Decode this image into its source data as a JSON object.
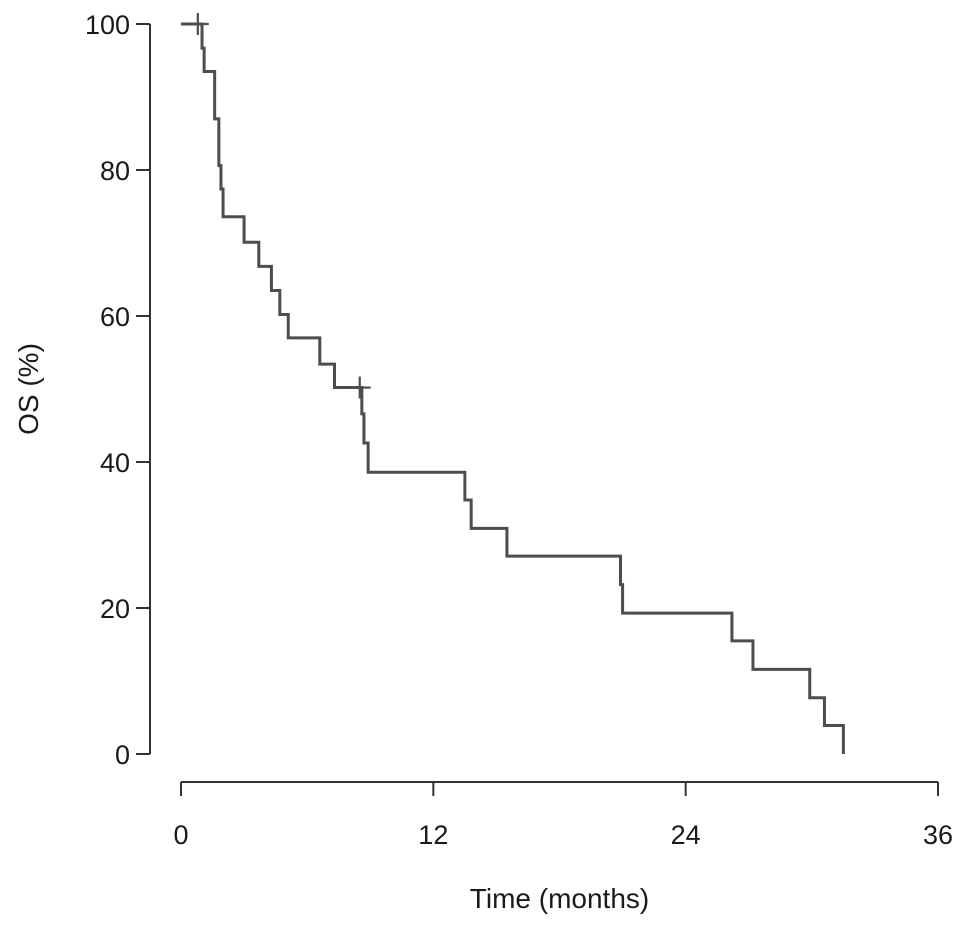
{
  "chart_data": {
    "type": "line",
    "subtype": "kaplan-meier-step",
    "xlabel": "Time (months)",
    "ylabel": "OS (%)",
    "xlim": [
      0,
      36
    ],
    "ylim": [
      0,
      100
    ],
    "xticks": [
      0,
      12,
      24,
      36
    ],
    "yticks": [
      0,
      20,
      40,
      60,
      80,
      100
    ],
    "grid": false,
    "line_color": "#4d4d4d",
    "series": [
      {
        "steps": [
          [
            0,
            100
          ],
          [
            1.0,
            96.7
          ],
          [
            1.1,
            93.5
          ],
          [
            1.6,
            87.0
          ],
          [
            1.8,
            80.6
          ],
          [
            1.9,
            77.4
          ],
          [
            2.0,
            73.6
          ],
          [
            3.0,
            70.1
          ],
          [
            3.7,
            66.8
          ],
          [
            4.3,
            63.5
          ],
          [
            4.7,
            60.2
          ],
          [
            5.1,
            57.0
          ],
          [
            6.6,
            53.4
          ],
          [
            7.3,
            50.2
          ],
          [
            8.6,
            46.6
          ],
          [
            8.7,
            42.6
          ],
          [
            8.9,
            38.6
          ],
          [
            13.5,
            34.8
          ],
          [
            13.8,
            30.9
          ],
          [
            15.5,
            27.1
          ],
          [
            20.9,
            23.2
          ],
          [
            21.0,
            19.3
          ],
          [
            26.2,
            15.5
          ],
          [
            27.2,
            11.6
          ],
          [
            29.9,
            7.7
          ],
          [
            30.6,
            3.9
          ],
          [
            31.5,
            0
          ]
        ],
        "censored": [
          [
            0.8,
            100
          ],
          [
            8.5,
            50.2
          ]
        ]
      }
    ]
  }
}
